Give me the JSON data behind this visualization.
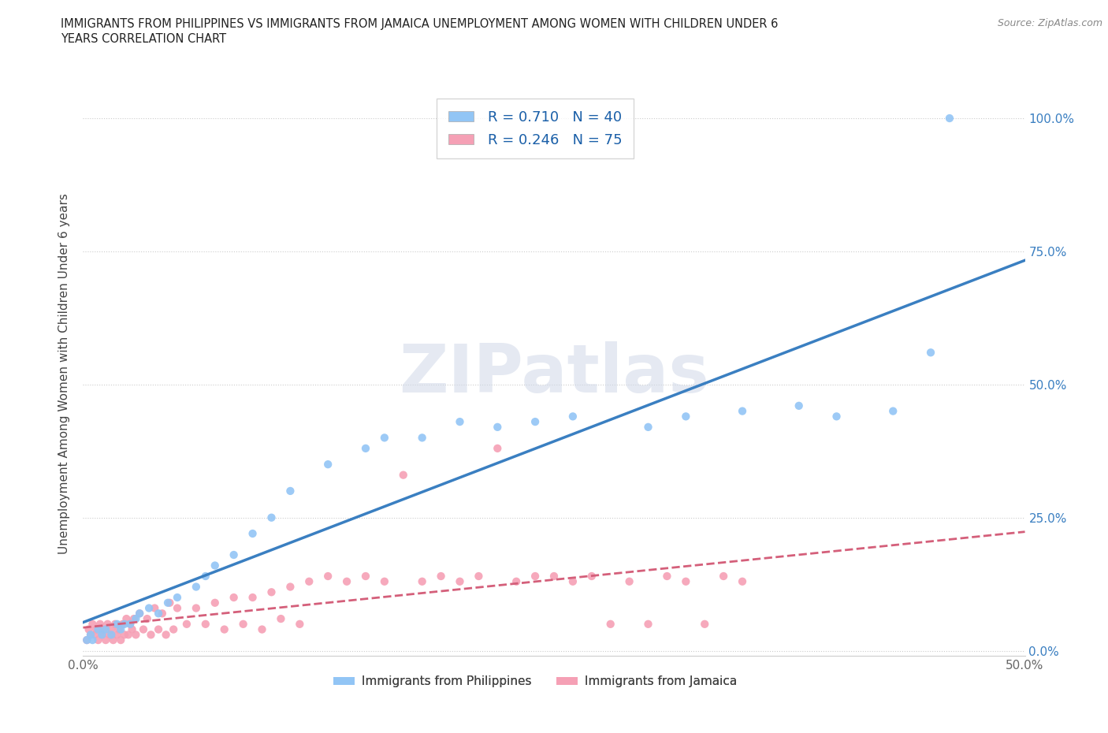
{
  "title_line1": "IMMIGRANTS FROM PHILIPPINES VS IMMIGRANTS FROM JAMAICA UNEMPLOYMENT AMONG WOMEN WITH CHILDREN UNDER 6",
  "title_line2": "YEARS CORRELATION CHART",
  "source": "Source: ZipAtlas.com",
  "ylabel": "Unemployment Among Women with Children Under 6 years",
  "xlim": [
    0.0,
    0.5
  ],
  "ylim": [
    -0.01,
    1.05
  ],
  "ytick_positions": [
    0.0,
    0.25,
    0.5,
    0.75,
    1.0
  ],
  "yticklabels_right": [
    "0.0%",
    "25.0%",
    "50.0%",
    "75.0%",
    "100.0%"
  ],
  "watermark": "ZIPatlas",
  "series1_color": "#92c5f5",
  "series2_color": "#f5a0b5",
  "series1_line_color": "#3a7fc1",
  "series2_line_color": "#d45f7a",
  "series1_R": 0.71,
  "series1_N": 40,
  "series2_R": 0.246,
  "series2_N": 75,
  "legend_text_color": "#1a5fa8",
  "grid_color": "#cccccc",
  "background_color": "#ffffff",
  "series1_x": [
    0.002,
    0.004,
    0.005,
    0.008,
    0.01,
    0.012,
    0.015,
    0.018,
    0.02,
    0.022,
    0.025,
    0.028,
    0.03,
    0.035,
    0.04,
    0.045,
    0.05,
    0.06,
    0.065,
    0.07,
    0.08,
    0.09,
    0.1,
    0.11,
    0.13,
    0.15,
    0.16,
    0.18,
    0.2,
    0.22,
    0.24,
    0.26,
    0.3,
    0.32,
    0.35,
    0.38,
    0.4,
    0.43,
    0.45,
    0.46
  ],
  "series1_y": [
    0.02,
    0.03,
    0.02,
    0.04,
    0.03,
    0.04,
    0.03,
    0.05,
    0.04,
    0.05,
    0.05,
    0.06,
    0.07,
    0.08,
    0.07,
    0.09,
    0.1,
    0.12,
    0.14,
    0.16,
    0.18,
    0.22,
    0.25,
    0.3,
    0.35,
    0.38,
    0.4,
    0.4,
    0.43,
    0.42,
    0.43,
    0.44,
    0.42,
    0.44,
    0.45,
    0.46,
    0.44,
    0.45,
    0.56,
    1.0
  ],
  "series2_x": [
    0.002,
    0.003,
    0.004,
    0.005,
    0.006,
    0.007,
    0.008,
    0.009,
    0.01,
    0.011,
    0.012,
    0.013,
    0.014,
    0.015,
    0.016,
    0.017,
    0.018,
    0.019,
    0.02,
    0.021,
    0.022,
    0.023,
    0.024,
    0.025,
    0.026,
    0.027,
    0.028,
    0.03,
    0.032,
    0.034,
    0.036,
    0.038,
    0.04,
    0.042,
    0.044,
    0.046,
    0.048,
    0.05,
    0.055,
    0.06,
    0.065,
    0.07,
    0.075,
    0.08,
    0.085,
    0.09,
    0.095,
    0.1,
    0.105,
    0.11,
    0.115,
    0.12,
    0.13,
    0.14,
    0.15,
    0.16,
    0.17,
    0.18,
    0.19,
    0.2,
    0.21,
    0.22,
    0.23,
    0.24,
    0.25,
    0.26,
    0.27,
    0.28,
    0.29,
    0.3,
    0.31,
    0.32,
    0.33,
    0.34,
    0.35
  ],
  "series2_y": [
    0.02,
    0.04,
    0.03,
    0.05,
    0.03,
    0.04,
    0.02,
    0.05,
    0.03,
    0.04,
    0.02,
    0.05,
    0.03,
    0.04,
    0.02,
    0.05,
    0.03,
    0.04,
    0.02,
    0.05,
    0.03,
    0.06,
    0.03,
    0.05,
    0.04,
    0.06,
    0.03,
    0.07,
    0.04,
    0.06,
    0.03,
    0.08,
    0.04,
    0.07,
    0.03,
    0.09,
    0.04,
    0.08,
    0.05,
    0.08,
    0.05,
    0.09,
    0.04,
    0.1,
    0.05,
    0.1,
    0.04,
    0.11,
    0.06,
    0.12,
    0.05,
    0.13,
    0.14,
    0.13,
    0.14,
    0.13,
    0.33,
    0.13,
    0.14,
    0.13,
    0.14,
    0.38,
    0.13,
    0.14,
    0.14,
    0.13,
    0.14,
    0.05,
    0.13,
    0.05,
    0.14,
    0.13,
    0.05,
    0.14,
    0.13
  ]
}
